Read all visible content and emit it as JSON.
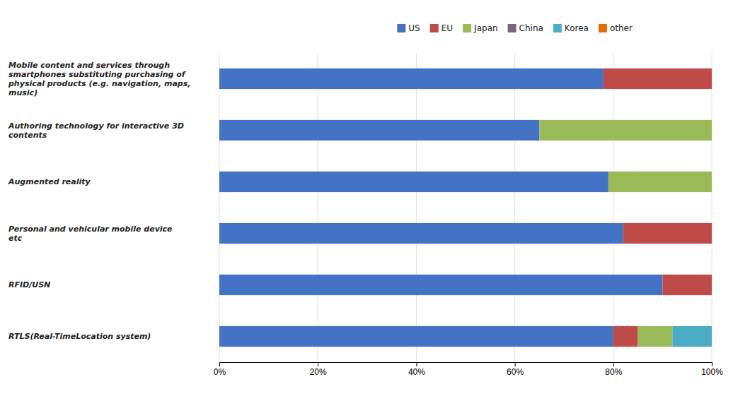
{
  "chart_data": {
    "type": "bar",
    "orientation": "horizontal",
    "stacked": true,
    "grid": true,
    "legend": "top",
    "categories": [
      "RTLS(Real-TimeLocation system)",
      "RFID/USN",
      "Personal and vehicular mobile device\netc",
      "Augmented reality",
      "Authoring technology for interactive 3D\ncontents",
      "Mobile content and services through\nsmartphones substituting purchasing of\nphysical products (e.g. navigation, maps,\nmusic)"
    ],
    "series": [
      {
        "name": "US",
        "color": "#4472C4",
        "values": [
          80.0,
          90.0,
          82.0,
          79.0,
          65.0,
          78.0
        ]
      },
      {
        "name": "EU",
        "color": "#BE4B48",
        "values": [
          5.0,
          10.0,
          18.0,
          0.0,
          0.0,
          22.0
        ]
      },
      {
        "name": "Japan",
        "color": "#9BBB59",
        "values": [
          7.0,
          0.0,
          0.0,
          21.0,
          35.0,
          0.0
        ]
      },
      {
        "name": "China",
        "color": "#7F6084",
        "values": [
          0.0,
          0.0,
          0.0,
          0.0,
          0.0,
          0.0
        ]
      },
      {
        "name": "Korea",
        "color": "#4BACC6",
        "values": [
          8.0,
          0.0,
          0.0,
          0.0,
          0.0,
          0.0
        ]
      },
      {
        "name": "other",
        "color": "#E36C09",
        "values": [
          0.0,
          0.0,
          0.0,
          0.0,
          0.0,
          0.0
        ]
      }
    ],
    "xlim": [
      0,
      100
    ],
    "xticks": [
      {
        "value": 0,
        "label": "0%"
      },
      {
        "value": 20,
        "label": "20%"
      },
      {
        "value": 40,
        "label": "40%"
      },
      {
        "value": 60,
        "label": "60%"
      },
      {
        "value": 80,
        "label": "80%"
      },
      {
        "value": 100,
        "label": "100%"
      }
    ]
  }
}
